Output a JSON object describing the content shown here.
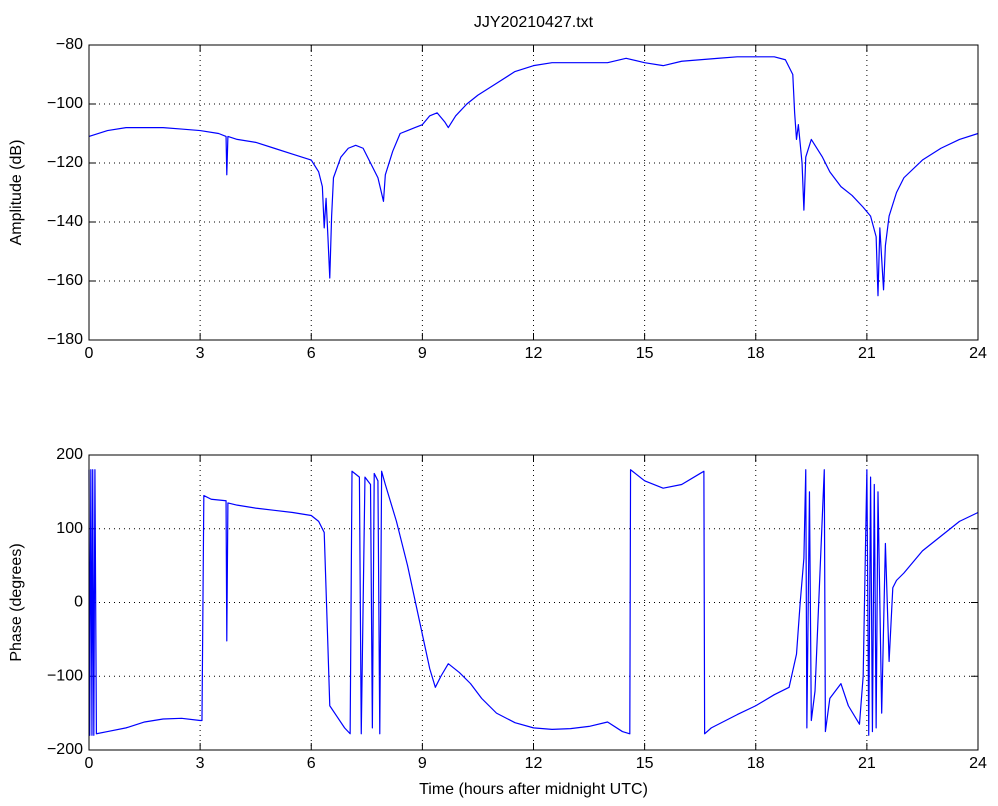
{
  "chart_data": [
    {
      "type": "line",
      "title": "JJY20210427.txt",
      "ylabel": "Amplitude (dB)",
      "color": "#0000ff",
      "grid": true,
      "xlim": [
        0,
        24
      ],
      "xticks": [
        0,
        3,
        6,
        9,
        12,
        15,
        18,
        21,
        24
      ],
      "ylim": [
        -180,
        -80
      ],
      "yticks": [
        {
          "value": -180,
          "label": "−180"
        },
        {
          "value": -160,
          "label": "−160"
        },
        {
          "value": -140,
          "label": "−140"
        },
        {
          "value": -120,
          "label": "−120"
        },
        {
          "value": -100,
          "label": "−100"
        },
        {
          "value": -80,
          "label": "−80"
        }
      ],
      "x": [
        0,
        0.5,
        1,
        1.5,
        2,
        2.5,
        3,
        3.5,
        3.7,
        3.72,
        3.75,
        4,
        4.5,
        5,
        5.5,
        6,
        6.2,
        6.3,
        6.35,
        6.4,
        6.45,
        6.5,
        6.55,
        6.6,
        6.8,
        7,
        7.2,
        7.4,
        7.6,
        7.8,
        7.95,
        8,
        8.2,
        8.4,
        8.6,
        8.8,
        9,
        9.2,
        9.4,
        9.6,
        9.7,
        9.9,
        10.2,
        10.5,
        11,
        11.5,
        12,
        12.5,
        13,
        13.5,
        14,
        14.5,
        15,
        15.5,
        16,
        16.5,
        17,
        17.5,
        18,
        18.5,
        18.8,
        19,
        19.05,
        19.1,
        19.15,
        19.25,
        19.3,
        19.35,
        19.5,
        19.8,
        20,
        20.3,
        20.6,
        20.9,
        21.1,
        21.25,
        21.3,
        21.35,
        21.45,
        21.5,
        21.6,
        21.8,
        22,
        22.5,
        23,
        23.5,
        24
      ],
      "values": [
        -111,
        -109,
        -108,
        -108,
        -108,
        -108.5,
        -109,
        -110,
        -111,
        -124,
        -111,
        -112,
        -113,
        -115,
        -117,
        -119,
        -123,
        -128,
        -142,
        -132,
        -145,
        -159,
        -138,
        -125,
        -118,
        -115,
        -114,
        -115,
        -120,
        -125,
        -133,
        -124,
        -116,
        -110,
        -109,
        -108,
        -107,
        -104,
        -103,
        -106,
        -108,
        -104,
        -100,
        -97,
        -93,
        -89,
        -87,
        -86,
        -86,
        -86,
        -86,
        -84.5,
        -86,
        -87,
        -85.5,
        -85,
        -84.5,
        -84,
        -84,
        -84,
        -85,
        -90,
        -103,
        -112,
        -107,
        -120,
        -136,
        -118,
        -112,
        -118,
        -123,
        -128,
        -131,
        -135,
        -138,
        -145,
        -165,
        -142,
        -163,
        -148,
        -138,
        -130,
        -125,
        -119,
        -115,
        -112,
        -110
      ]
    },
    {
      "type": "line",
      "ylabel": "Phase (degrees)",
      "xlabel": "Time (hours after midnight UTC)",
      "color": "#0000ff",
      "grid": true,
      "xlim": [
        0,
        24
      ],
      "xticks": [
        0,
        3,
        6,
        9,
        12,
        15,
        18,
        21,
        24
      ],
      "ylim": [
        -200,
        200
      ],
      "yticks": [
        {
          "value": -200,
          "label": "−200"
        },
        {
          "value": -100,
          "label": "−100"
        },
        0,
        100,
        200
      ],
      "x": [
        0,
        0.02,
        0.05,
        0.08,
        0.1,
        0.13,
        0.16,
        0.2,
        0.5,
        1,
        1.5,
        2,
        2.5,
        3,
        3.05,
        3.1,
        3.3,
        3.7,
        3.72,
        3.75,
        4,
        4.5,
        5,
        5.5,
        6,
        6.2,
        6.35,
        6.45,
        6.5,
        6.7,
        6.9,
        7.05,
        7.1,
        7.3,
        7.35,
        7.45,
        7.6,
        7.65,
        7.7,
        7.8,
        7.85,
        7.9,
        8,
        8.3,
        8.6,
        8.9,
        9.2,
        9.35,
        9.5,
        9.7,
        10,
        10.3,
        10.6,
        11,
        11.5,
        12,
        12.5,
        13,
        13.5,
        14,
        14.4,
        14.6,
        14.62,
        15,
        15.5,
        16,
        16.5,
        16.6,
        16.62,
        16.8,
        17.5,
        18,
        18.5,
        18.9,
        19.1,
        19.2,
        19.3,
        19.35,
        19.38,
        19.45,
        19.5,
        19.6,
        19.8,
        19.85,
        19.88,
        20,
        20.3,
        20.5,
        20.8,
        20.9,
        21,
        21.05,
        21.1,
        21.15,
        21.2,
        21.25,
        21.3,
        21.4,
        21.5,
        21.6,
        21.7,
        21.8,
        22,
        22.5,
        23,
        23.5,
        24
      ],
      "values": [
        180,
        -180,
        180,
        -180,
        180,
        -180,
        180,
        -178,
        -175,
        -170,
        -162,
        -158,
        -157,
        -160,
        -160,
        145,
        140,
        138,
        -52,
        135,
        132,
        128,
        125,
        122,
        118,
        110,
        95,
        -60,
        -140,
        -155,
        -170,
        -178,
        178,
        170,
        -178,
        170,
        160,
        -170,
        175,
        165,
        -178,
        178,
        160,
        110,
        50,
        -20,
        -90,
        -115,
        -100,
        -83,
        -95,
        -110,
        -130,
        -150,
        -163,
        -170,
        -172,
        -171,
        -168,
        -162,
        -175,
        -178,
        180,
        165,
        155,
        160,
        175,
        178,
        -178,
        -170,
        -152,
        -140,
        -125,
        -115,
        -70,
        0,
        60,
        180,
        -170,
        150,
        -160,
        -120,
        120,
        180,
        -175,
        -130,
        -110,
        -140,
        -165,
        -100,
        180,
        -180,
        170,
        -175,
        160,
        -170,
        150,
        -150,
        80,
        -80,
        20,
        30,
        40,
        70,
        90,
        110,
        122
      ]
    }
  ]
}
